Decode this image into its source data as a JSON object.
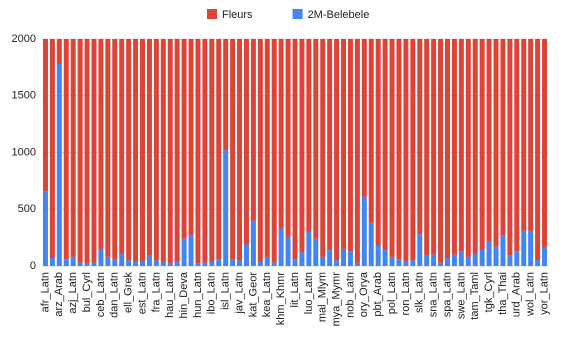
{
  "chart_data": {
    "type": "stacked_bar",
    "categories": [
      "afr_Latn",
      null,
      "arz_Arab",
      null,
      "azj_Latn",
      null,
      "bul_Cyrl",
      null,
      "ceb_Latn",
      null,
      "dan_Latn",
      null,
      "ell_Grek",
      null,
      "est_Latn",
      null,
      "fra_Latn",
      null,
      "hau_Latn",
      null,
      "hin_Deva",
      null,
      "hun_Latn",
      null,
      "ibo_Latn",
      null,
      "isl_Latn",
      null,
      "jav_Latn",
      null,
      "kat_Geor",
      null,
      "kea_Latn",
      null,
      "khm_Khmr",
      null,
      "lit_Latn",
      null,
      "luo_Latn",
      null,
      "mal_Mlym",
      null,
      "mya_Mymr",
      null,
      "nob_Latn",
      null,
      "ory_Orya",
      null,
      "pbt_Arab",
      null,
      "pol_Latn",
      null,
      "ron_Latn",
      null,
      "slk_Latn",
      null,
      "sna_Latn",
      null,
      "spa_Latn",
      null,
      "swe_Latn",
      null,
      "tam_Taml",
      null,
      "tgk_Cyrl",
      null,
      "tha_Thai",
      null,
      "urd_Arab",
      null,
      "wol_Latn",
      null,
      "yor_Latn"
    ],
    "series": [
      {
        "name": "2M-Belebele",
        "color": "#4285f4",
        "values": [
          660,
          70,
          1780,
          60,
          80,
          30,
          20,
          30,
          150,
          80,
          60,
          110,
          50,
          40,
          40,
          90,
          50,
          40,
          20,
          40,
          240,
          270,
          20,
          30,
          40,
          60,
          1020,
          60,
          50,
          190,
          400,
          40,
          80,
          30,
          330,
          250,
          60,
          120,
          300,
          240,
          80,
          140,
          50,
          150,
          130,
          30,
          610,
          380,
          180,
          140,
          80,
          60,
          40,
          50,
          280,
          90,
          100,
          30,
          70,
          100,
          130,
          80,
          110,
          150,
          220,
          170,
          270,
          90,
          130,
          310,
          310,
          50,
          160
        ]
      },
      {
        "name": "Fleurs",
        "color": "#db4437",
        "values": [
          1340,
          1930,
          220,
          1940,
          1920,
          1970,
          1980,
          1970,
          1850,
          1920,
          1940,
          1890,
          1950,
          1960,
          1960,
          1910,
          1950,
          1960,
          1980,
          1960,
          1760,
          1730,
          1980,
          1970,
          1960,
          1940,
          980,
          1940,
          1950,
          1810,
          1600,
          1960,
          1920,
          1970,
          1670,
          1750,
          1940,
          1880,
          1700,
          1760,
          1920,
          1860,
          1950,
          1850,
          1870,
          1970,
          1390,
          1620,
          1820,
          1860,
          1920,
          1940,
          1960,
          1950,
          1720,
          1910,
          1900,
          1970,
          1930,
          1900,
          1870,
          1920,
          1890,
          1850,
          1780,
          1830,
          1730,
          1910,
          1870,
          1690,
          1690,
          1950,
          1840
        ]
      }
    ],
    "legend_order": [
      1,
      0
    ],
    "ylim": [
      0,
      2000
    ],
    "yticks": [
      0,
      500,
      1000,
      1500,
      2000
    ],
    "grid": true
  }
}
